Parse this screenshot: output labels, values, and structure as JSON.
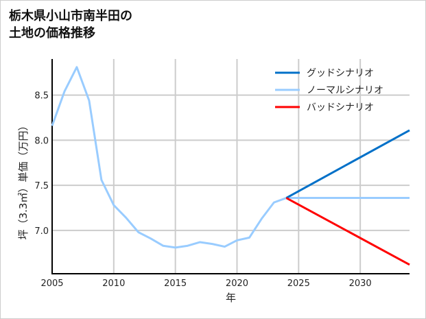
{
  "chart_data": {
    "type": "line",
    "title": "栃木県小山市南半田の\n土地の価格推移",
    "xlabel": "年",
    "ylabel": "坪（3.3㎡）単価（万円）",
    "xlim": [
      2005,
      2034
    ],
    "ylim": [
      6.52,
      8.9
    ],
    "xticks": [
      2005,
      2010,
      2015,
      2020,
      2025,
      2030
    ],
    "yticks": [
      7.0,
      7.5,
      8.0,
      8.5
    ],
    "ytick_labels": [
      "7.0",
      "7.5",
      "8.0",
      "8.5"
    ],
    "grid": true,
    "legend_position": "top-right",
    "series": [
      {
        "name": "グッドシナリオ",
        "color": "#0070c8",
        "x": [
          2024,
          2034
        ],
        "values": [
          7.36,
          8.11
        ]
      },
      {
        "name": "ノーマルシナリオ",
        "color": "#99ccff",
        "x": [
          2005,
          2006,
          2007,
          2008,
          2009,
          2010,
          2011,
          2012,
          2013,
          2014,
          2015,
          2016,
          2017,
          2018,
          2019,
          2020,
          2021,
          2022,
          2023,
          2024,
          2034
        ],
        "values": [
          8.16,
          8.54,
          8.81,
          8.44,
          7.56,
          7.28,
          7.14,
          6.98,
          6.91,
          6.83,
          6.81,
          6.83,
          6.87,
          6.85,
          6.82,
          6.89,
          6.92,
          7.13,
          7.31,
          7.36,
          7.36
        ]
      },
      {
        "name": "バッドシナリオ",
        "color": "#ff0000",
        "x": [
          2024,
          2034
        ],
        "values": [
          7.36,
          6.62
        ]
      }
    ]
  }
}
